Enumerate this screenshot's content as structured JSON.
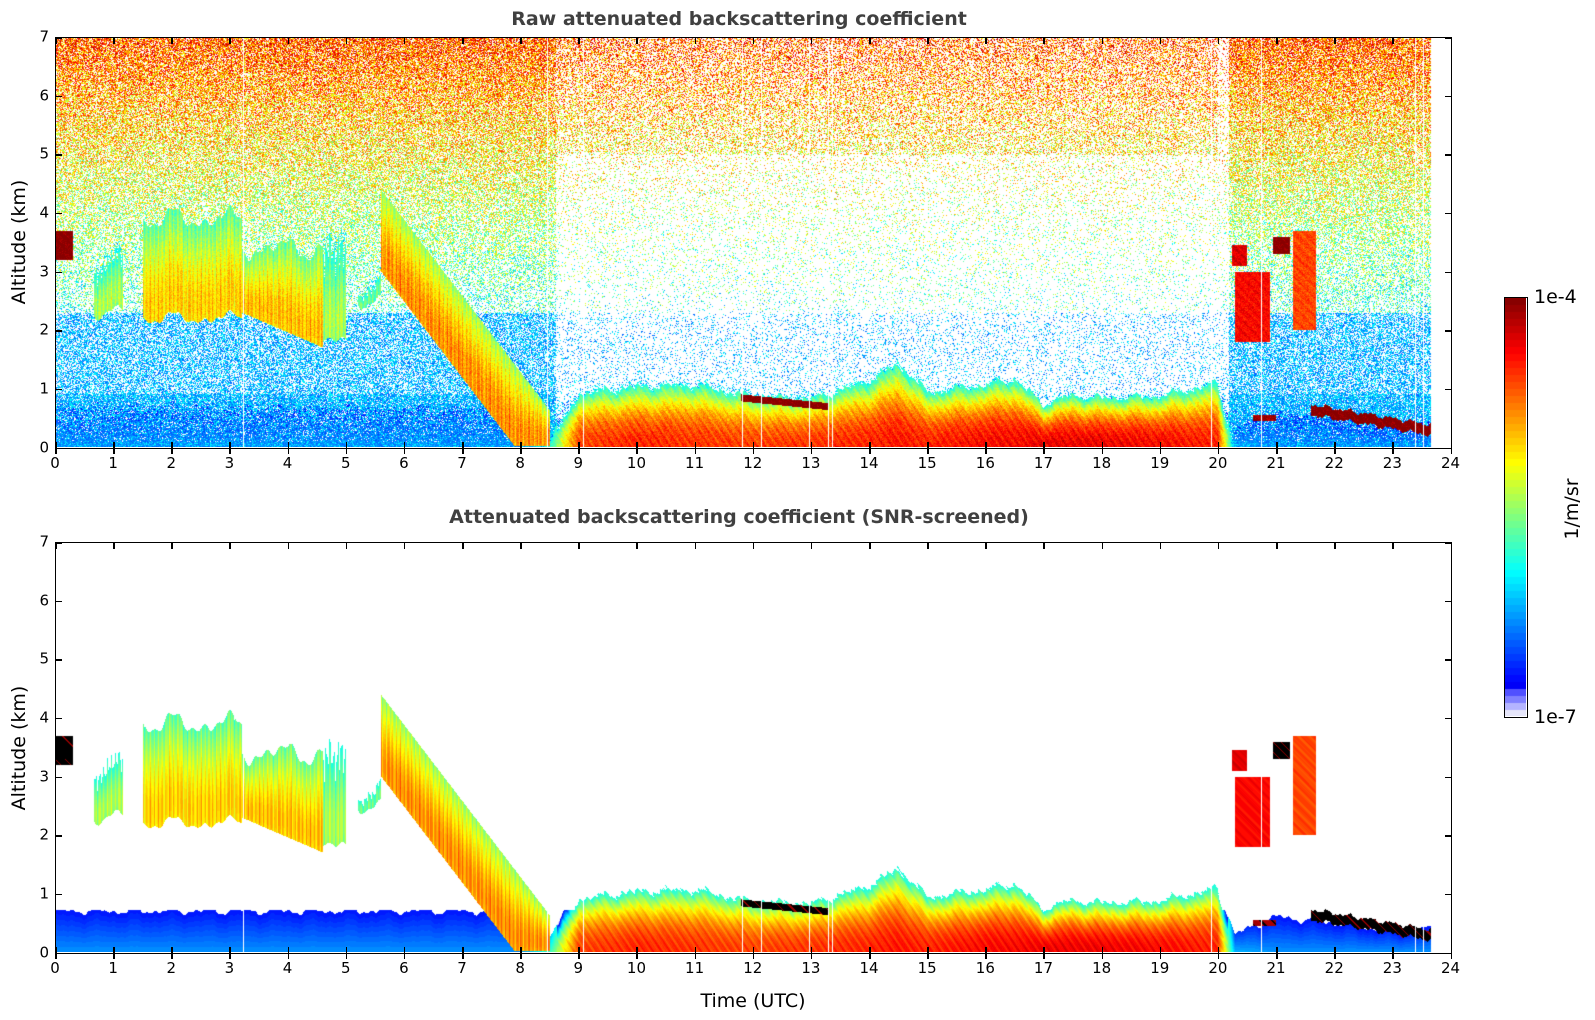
{
  "chart_data": [
    {
      "type": "heatmap",
      "id": "raw",
      "title": "Raw attenuated backscattering coefficient",
      "xlabel": "",
      "ylabel": "Altitude (km)",
      "xlim": [
        0,
        24
      ],
      "ylim": [
        0,
        7
      ],
      "xticks": [
        0,
        1,
        2,
        3,
        4,
        5,
        6,
        7,
        8,
        9,
        10,
        11,
        12,
        13,
        14,
        15,
        16,
        17,
        18,
        19,
        20,
        21,
        22,
        23,
        24
      ],
      "yticks": [
        0,
        1,
        2,
        3,
        4,
        5,
        6,
        7
      ],
      "data_end_hour": 23.67,
      "screened": false,
      "gaps_hours": [
        3.23,
        8.47,
        9.08,
        11.82,
        12.15,
        12.97,
        13.3,
        13.37,
        19.9,
        20.75,
        23.4,
        23.55
      ],
      "boundary_layer": {
        "hours": [
          0,
          1,
          2,
          3,
          4,
          5,
          6,
          7,
          8,
          8.5,
          9,
          10,
          11,
          12,
          13,
          14,
          14.5,
          15,
          16,
          16.5,
          17,
          17.5,
          18,
          19,
          20,
          20.3,
          21,
          22,
          23,
          23.67
        ],
        "top_km": [
          0.7,
          0.7,
          0.7,
          0.7,
          0.7,
          0.7,
          0.7,
          0.7,
          0.7,
          0.3,
          1.0,
          1.1,
          1.15,
          0.95,
          0.9,
          1.2,
          1.5,
          1.0,
          1.1,
          1.2,
          0.75,
          0.9,
          0.85,
          0.9,
          1.15,
          0.3,
          0.6,
          0.5,
          0.35,
          0.4
        ],
        "peak_log10": [
          -6.3,
          -6.3,
          -6.3,
          -6.3,
          -6.3,
          -6.3,
          -6.3,
          -6.3,
          -6.3,
          -5.8,
          -4.6,
          -4.5,
          -4.55,
          -4.6,
          -4.55,
          -4.5,
          -4.45,
          -4.5,
          -4.4,
          -4.4,
          -4.35,
          -4.35,
          -4.35,
          -4.4,
          -4.5,
          -6.2,
          -6.3,
          -6.3,
          -6.3,
          -6.3
        ]
      },
      "aerosol_layers": [
        {
          "t0": 0.65,
          "t1": 1.15,
          "bottom_km": 2.3,
          "top_km": 3.3,
          "log10": -5.2
        },
        {
          "t0": 1.5,
          "t1": 3.2,
          "bottom_km": 2.2,
          "top_km": 3.9,
          "log10": -4.8
        },
        {
          "t0": 3.2,
          "t1": 4.6,
          "bottom_km": 1.7,
          "top_km": 3.4,
          "log10": -4.75
        },
        {
          "t0": 4.6,
          "t1": 5.0,
          "bottom_km": 1.8,
          "top_km": 3.6,
          "log10": -5.2
        },
        {
          "t0": 5.2,
          "t1": 5.6,
          "bottom_km": 2.5,
          "top_km": 2.9,
          "log10": -5.4
        },
        {
          "t0": 5.6,
          "t1": 8.5,
          "bottom_km": 0.2,
          "top_km": 4.4,
          "log10": -4.6,
          "slope_km_per_h": -1.3
        }
      ],
      "clouds": [
        {
          "t0": 0.0,
          "t1": 0.3,
          "bottom_km": 3.2,
          "top_km": 3.7,
          "log10": -4.0
        },
        {
          "t0": 11.8,
          "t1": 13.3,
          "bottom_km": 0.6,
          "top_km": 0.9,
          "log10": -4.0
        },
        {
          "t0": 20.25,
          "t1": 20.5,
          "bottom_km": 3.1,
          "top_km": 3.45,
          "log10": -4.3
        },
        {
          "t0": 20.3,
          "t1": 20.9,
          "bottom_km": 1.8,
          "top_km": 3.0,
          "log10": -4.4
        },
        {
          "t0": 20.95,
          "t1": 21.25,
          "bottom_km": 3.3,
          "top_km": 3.6,
          "log10": -4.0
        },
        {
          "t0": 21.3,
          "t1": 21.7,
          "bottom_km": 2.0,
          "top_km": 3.7,
          "log10": -4.6
        },
        {
          "t0": 21.6,
          "t1": 23.67,
          "bottom_km": 0.15,
          "top_km": 0.5,
          "log10": -4.0
        },
        {
          "t0": 20.6,
          "t1": 21.0,
          "bottom_km": 0.45,
          "top_km": 0.55,
          "log10": -4.1
        }
      ]
    },
    {
      "type": "heatmap",
      "id": "screened",
      "title": "Attenuated backscattering coefficient (SNR-screened)",
      "xlabel": "Time (UTC)",
      "ylabel": "Altitude (km)",
      "xlim": [
        0,
        24
      ],
      "ylim": [
        0,
        7
      ],
      "xticks": [
        0,
        1,
        2,
        3,
        4,
        5,
        6,
        7,
        8,
        9,
        10,
        11,
        12,
        13,
        14,
        15,
        16,
        17,
        18,
        19,
        20,
        21,
        22,
        23,
        24
      ],
      "yticks": [
        0,
        1,
        2,
        3,
        4,
        5,
        6,
        7
      ],
      "data_end_hour": 23.67,
      "screened": true,
      "saturated_color": "#000000"
    }
  ],
  "colorbar": {
    "label": "1/m/sr",
    "min_label": "1e-7",
    "max_label": "1e-4",
    "log10_range": [
      -7,
      -4
    ],
    "colormap": "jet",
    "low_end_colors": [
      "#e6e6fa",
      "#b4b4ff",
      "#8080ff",
      "#5050ff"
    ]
  }
}
